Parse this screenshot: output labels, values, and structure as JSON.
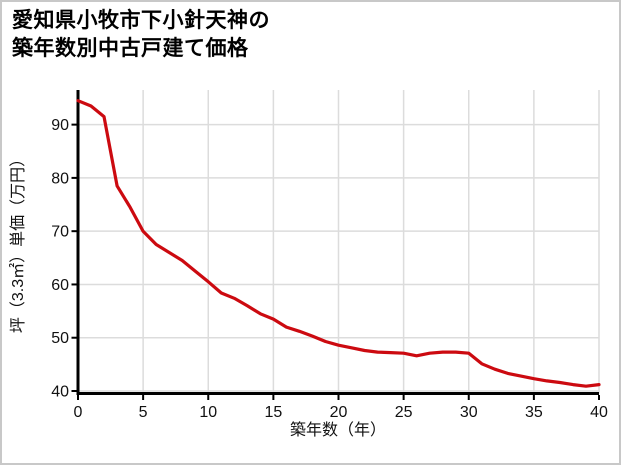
{
  "title": {
    "line1": "愛知県小牧市下小針天神の",
    "line2": "築年数別中古戸建て価格"
  },
  "chart_data": {
    "type": "line",
    "title": "愛知県小牧市下小針天神の築年数別中古戸建て価格",
    "xlabel": "築年数（年）",
    "ylabel": "坪（3.3㎡）単価（万円）",
    "x": [
      0,
      1,
      2,
      3,
      4,
      5,
      6,
      7,
      8,
      9,
      10,
      11,
      12,
      13,
      14,
      15,
      16,
      17,
      18,
      19,
      20,
      21,
      22,
      23,
      24,
      25,
      26,
      27,
      28,
      29,
      30,
      31,
      32,
      33,
      34,
      35,
      36,
      37,
      38,
      39,
      40
    ],
    "values": [
      94.5,
      93.5,
      91.5,
      78.5,
      74.5,
      70,
      67.5,
      66,
      64.5,
      62.5,
      60.5,
      58.4,
      57.4,
      56,
      54.5,
      53.5,
      52,
      51.2,
      50.3,
      49.3,
      48.6,
      48.1,
      47.6,
      47.3,
      47.2,
      47.1,
      46.6,
      47.1,
      47.3,
      47.3,
      47.1,
      45.1,
      44.1,
      43.3,
      42.8,
      42.3,
      41.9,
      41.6,
      41.2,
      40.9,
      41.2
    ],
    "xticks": [
      0,
      5,
      10,
      15,
      20,
      25,
      30,
      35,
      40
    ],
    "yticks": [
      40,
      50,
      60,
      70,
      80,
      90
    ],
    "xlim": [
      0,
      40
    ],
    "ylim": [
      40,
      96.5
    ],
    "grid": true,
    "legend_position": "none"
  },
  "colors": {
    "line": "#cc0a10",
    "grid": "#dcdcdc",
    "axis": "#000000",
    "text": "#111111",
    "border": "#c8c8c8",
    "background": "#ffffff"
  }
}
